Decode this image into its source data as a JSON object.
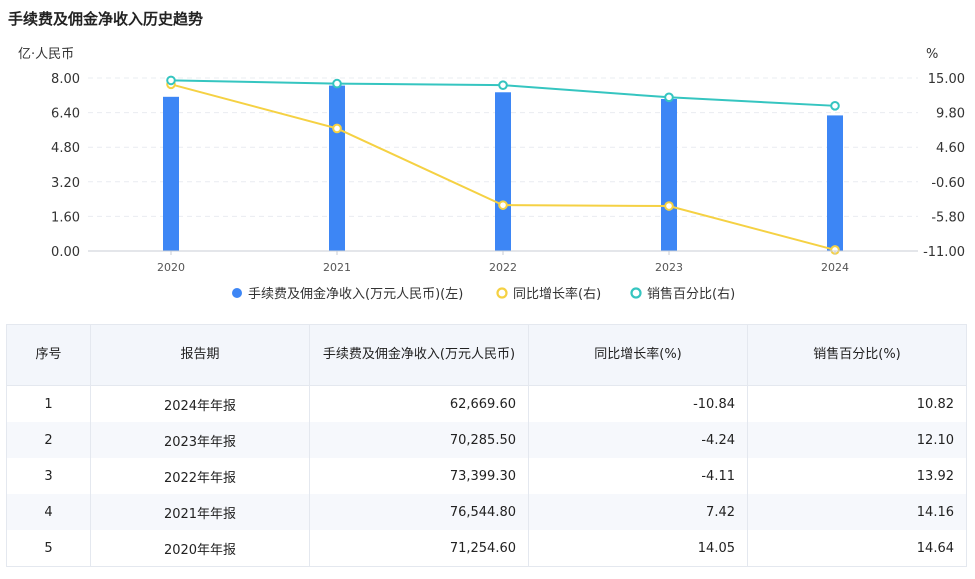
{
  "title": "手续费及佣金净收入历史趋势",
  "colors": {
    "bar": "#3d86f5",
    "growth": "#f5d143",
    "ratio": "#35c5c0"
  },
  "chart_data": {
    "type": "bar",
    "categories": [
      "2020",
      "2021",
      "2022",
      "2023",
      "2024"
    ],
    "left_axis": {
      "unit": "亿·人民币",
      "ticks": [
        "8.00",
        "6.40",
        "4.80",
        "3.20",
        "1.60",
        "0.00"
      ],
      "range": [
        0,
        8
      ]
    },
    "right_axis": {
      "unit": "%",
      "ticks": [
        "15.00",
        "9.80",
        "4.60",
        "-0.60",
        "-5.80",
        "-11.00"
      ],
      "range": [
        -11,
        15
      ]
    },
    "series": [
      {
        "name": "手续费及佣金净收入(万元人民币)(左)",
        "type": "bar",
        "axis": "left",
        "values": [
          7.13,
          7.65,
          7.34,
          7.03,
          6.27
        ]
      },
      {
        "name": "同比增长率(右)",
        "type": "line",
        "axis": "right",
        "values": [
          14.05,
          7.42,
          -4.11,
          -4.24,
          -10.84
        ]
      },
      {
        "name": "销售百分比(右)",
        "type": "line",
        "axis": "right",
        "values": [
          14.64,
          14.16,
          13.92,
          12.1,
          10.82
        ]
      }
    ],
    "legend_position": "bottom"
  },
  "table": {
    "headers": [
      "序号",
      "报告期",
      "手续费及佣金净收入(万元人民币)",
      "同比增长率(%)",
      "销售百分比(%)"
    ],
    "rows": [
      [
        "1",
        "2024年年报",
        "62,669.60",
        "-10.84",
        "10.82"
      ],
      [
        "2",
        "2023年年报",
        "70,285.50",
        "-4.24",
        "12.10"
      ],
      [
        "3",
        "2022年年报",
        "73,399.30",
        "-4.11",
        "13.92"
      ],
      [
        "4",
        "2021年年报",
        "76,544.80",
        "7.42",
        "14.16"
      ],
      [
        "5",
        "2020年年报",
        "71,254.60",
        "14.05",
        "14.64"
      ]
    ]
  }
}
